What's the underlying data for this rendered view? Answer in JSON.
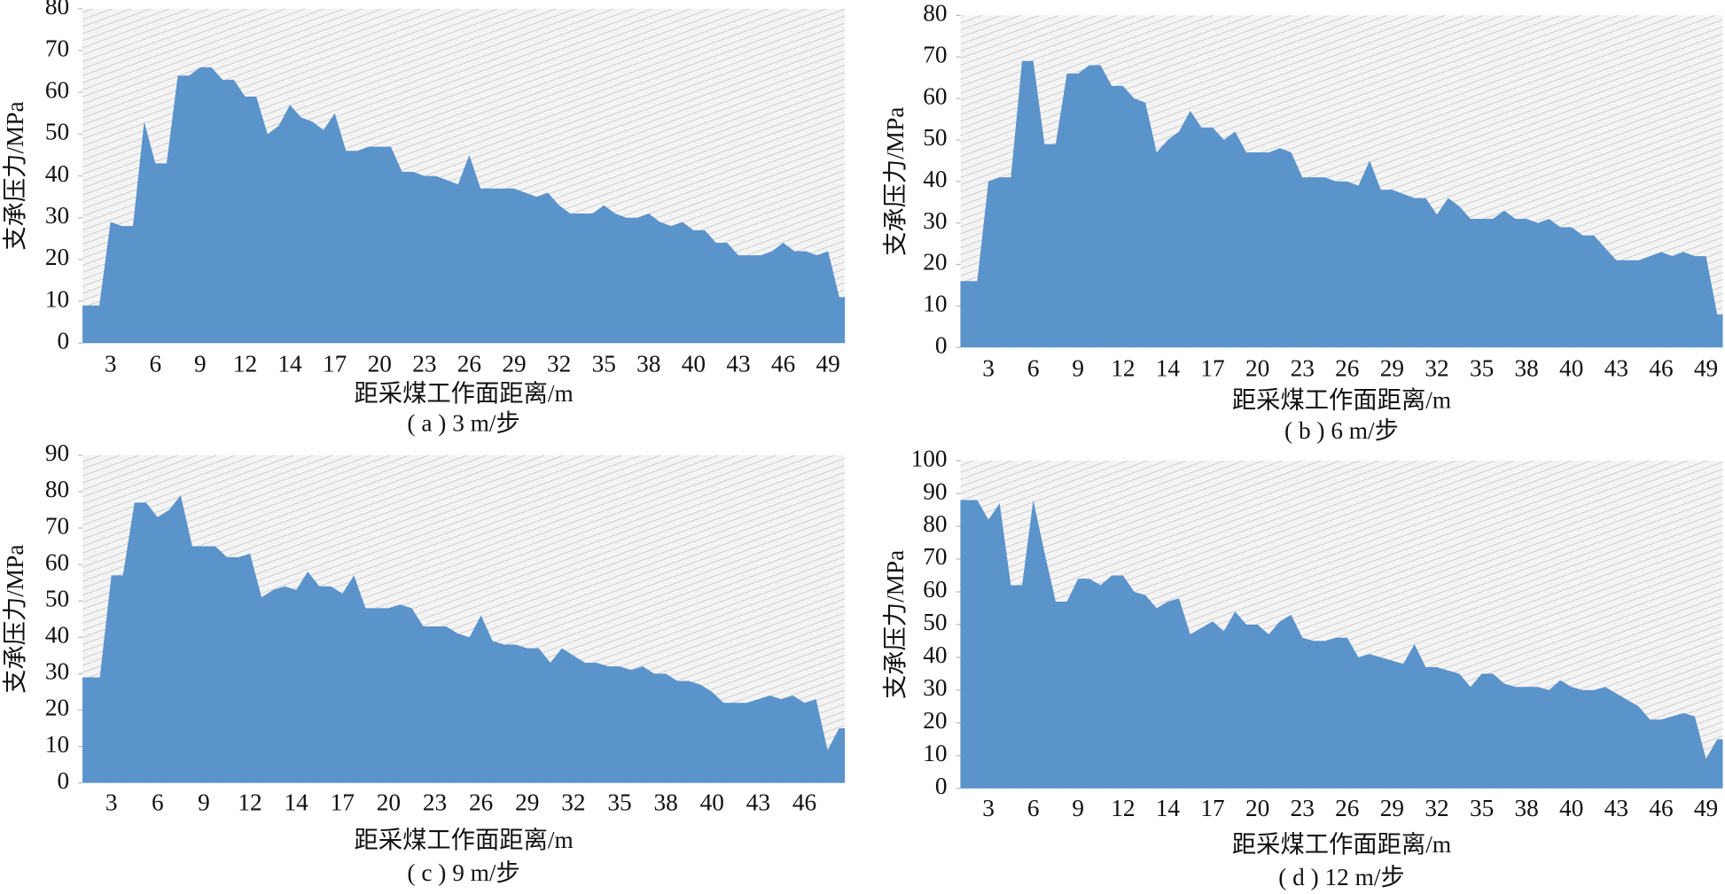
{
  "chart_data": [
    {
      "type": "area",
      "title": "( a ) 3 m/步",
      "xlabel": "距采煤工作面距离/m",
      "ylabel": "支承压力/MPa",
      "color": "#5b93cb",
      "categories": [
        null,
        null,
        "3",
        null,
        null,
        null,
        "6",
        null,
        null,
        null,
        "9",
        null,
        null,
        null,
        "12",
        null,
        null,
        null,
        "14",
        null,
        null,
        null,
        "17",
        null,
        null,
        null,
        "20",
        null,
        null,
        null,
        "23",
        null,
        null,
        null,
        "26",
        null,
        null,
        null,
        "29",
        null,
        null,
        null,
        "32",
        null,
        null,
        null,
        "35",
        null,
        null,
        null,
        "38",
        null,
        null,
        null,
        "40",
        null,
        null,
        null,
        "43",
        null,
        null,
        null,
        "46",
        null,
        null,
        null,
        "49",
        null
      ],
      "values": [
        9,
        9,
        29,
        28,
        28,
        53,
        43,
        43,
        64,
        64,
        66,
        66,
        63,
        63,
        59,
        59,
        50,
        52,
        57,
        54,
        53,
        51,
        55,
        46,
        46,
        47,
        47,
        47,
        41,
        41,
        40,
        40,
        39,
        38,
        45,
        37,
        37,
        37,
        37,
        36,
        35,
        36,
        33,
        31,
        31,
        31,
        33,
        31,
        30,
        30,
        31,
        29,
        28,
        29,
        27,
        27,
        24,
        24,
        21,
        21,
        21,
        22,
        24,
        22,
        22,
        21,
        22,
        11
      ],
      "ylim": [
        0,
        80
      ],
      "yticks": [
        0,
        10,
        20,
        30,
        40,
        50,
        60,
        70,
        80
      ]
    },
    {
      "type": "area",
      "title": "( b ) 6 m/步",
      "xlabel": "距采煤工作面距离/m",
      "ylabel": "支承压力/MPa",
      "color": "#5b93cb",
      "categories": [
        null,
        null,
        "3",
        null,
        null,
        null,
        "6",
        null,
        null,
        null,
        "9",
        null,
        null,
        null,
        "12",
        null,
        null,
        null,
        "14",
        null,
        null,
        null,
        "17",
        null,
        null,
        null,
        "20",
        null,
        null,
        null,
        "23",
        null,
        null,
        null,
        "26",
        null,
        null,
        null,
        "29",
        null,
        null,
        null,
        "32",
        null,
        null,
        null,
        "35",
        null,
        null,
        null,
        "38",
        null,
        null,
        null,
        "40",
        null,
        null,
        null,
        "43",
        null,
        null,
        null,
        "46",
        null,
        null,
        null,
        "49",
        null
      ],
      "values": [
        16,
        16,
        40,
        41,
        41,
        69,
        69,
        49,
        49,
        66,
        66,
        68,
        68,
        63,
        63,
        60,
        59,
        47,
        50,
        52,
        57,
        53,
        53,
        50,
        52,
        47,
        47,
        47,
        48,
        47,
        41,
        41,
        41,
        40,
        40,
        39,
        45,
        38,
        38,
        37,
        36,
        36,
        32,
        36,
        34,
        31,
        31,
        31,
        33,
        31,
        31,
        30,
        31,
        29,
        29,
        27,
        27,
        24,
        21,
        21,
        21,
        22,
        23,
        22,
        23,
        22,
        22,
        8
      ],
      "ylim": [
        0,
        80
      ],
      "yticks": [
        0,
        10,
        20,
        30,
        40,
        50,
        60,
        70,
        80
      ]
    },
    {
      "type": "area",
      "title": "( c ) 9 m/步",
      "xlabel": "距采煤工作面距离/m",
      "ylabel": "支承压力/MPa",
      "color": "#5b93cb",
      "categories": [
        null,
        null,
        "3",
        null,
        null,
        null,
        "6",
        null,
        null,
        null,
        "9",
        null,
        null,
        null,
        "12",
        null,
        null,
        null,
        "14",
        null,
        null,
        null,
        "17",
        null,
        null,
        null,
        "20",
        null,
        null,
        null,
        "23",
        null,
        null,
        null,
        "26",
        null,
        null,
        null,
        "29",
        null,
        null,
        null,
        "32",
        null,
        null,
        null,
        "35",
        null,
        null,
        null,
        "38",
        null,
        null,
        null,
        "40",
        null,
        null,
        null,
        "43",
        null,
        null,
        null,
        "46",
        null,
        null,
        null
      ],
      "values": [
        29,
        29,
        57,
        57,
        77,
        77,
        73,
        75,
        79,
        65,
        65,
        65,
        62,
        62,
        63,
        51,
        53,
        54,
        53,
        58,
        54,
        54,
        52,
        57,
        48,
        48,
        48,
        49,
        48,
        43,
        43,
        43,
        41,
        40,
        46,
        39,
        38,
        38,
        37,
        37,
        33,
        37,
        35,
        33,
        33,
        32,
        32,
        31,
        32,
        30,
        30,
        28,
        28,
        27,
        25,
        22,
        22,
        22,
        23,
        24,
        23,
        24,
        22,
        23,
        9,
        15
      ],
      "ylim": [
        0,
        90
      ],
      "yticks": [
        0,
        10,
        20,
        30,
        40,
        50,
        60,
        70,
        80,
        90
      ]
    },
    {
      "type": "area",
      "title": "( d ) 12 m/步",
      "xlabel": "距采煤工作面距离/m",
      "ylabel": "支承压力/MPa",
      "color": "#5b93cb",
      "categories": [
        null,
        null,
        "3",
        null,
        null,
        null,
        "6",
        null,
        null,
        null,
        "9",
        null,
        null,
        null,
        "12",
        null,
        null,
        null,
        "14",
        null,
        null,
        null,
        "17",
        null,
        null,
        null,
        "20",
        null,
        null,
        null,
        "23",
        null,
        null,
        null,
        "26",
        null,
        null,
        null,
        "29",
        null,
        null,
        null,
        "32",
        null,
        null,
        null,
        "35",
        null,
        null,
        null,
        "38",
        null,
        null,
        null,
        "40",
        null,
        null,
        null,
        "43",
        null,
        null,
        null,
        "46",
        null,
        null,
        null,
        "49",
        null
      ],
      "values": [
        88,
        88,
        82,
        87,
        62,
        62,
        88,
        72,
        57,
        57,
        64,
        64,
        62,
        65,
        65,
        60,
        59,
        55,
        57,
        58,
        47,
        49,
        51,
        48,
        54,
        50,
        50,
        47,
        51,
        53,
        46,
        45,
        45,
        46,
        46,
        40,
        41,
        40,
        39,
        38,
        44,
        37,
        37,
        36,
        35,
        31,
        35,
        35,
        32,
        31,
        31,
        31,
        30,
        33,
        31,
        30,
        30,
        31,
        29,
        27,
        25,
        21,
        21,
        22,
        23,
        22,
        9,
        15
      ],
      "ylim": [
        0,
        100
      ],
      "yticks": [
        0,
        10,
        20,
        30,
        40,
        50,
        60,
        70,
        80,
        90,
        100
      ]
    }
  ]
}
